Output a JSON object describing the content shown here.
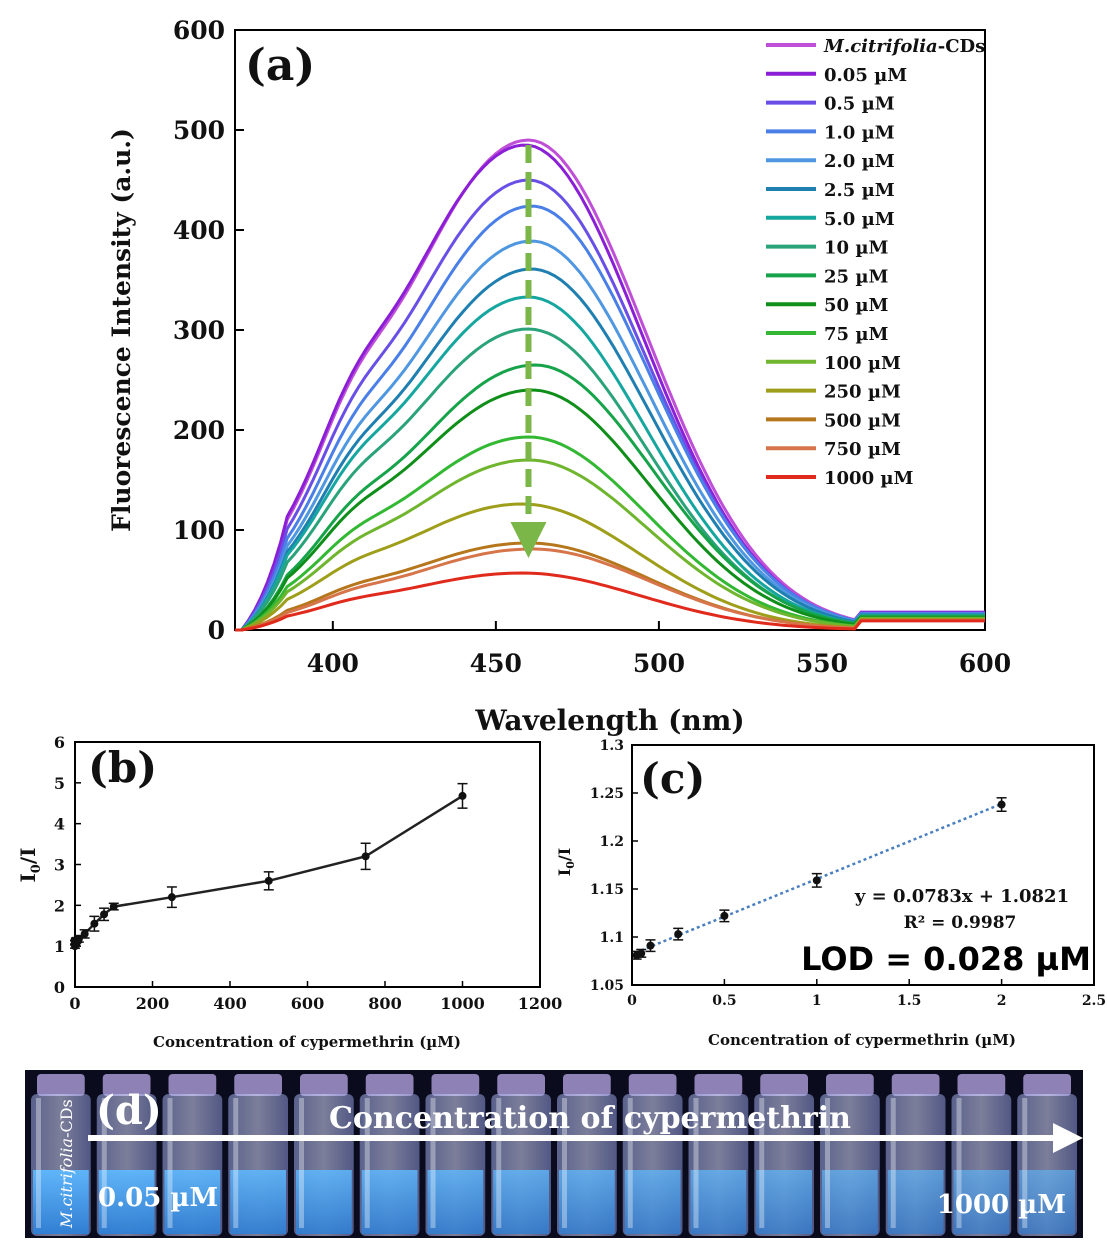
{
  "panels": {
    "a": "(a)",
    "b": "(b)",
    "c": "(c)",
    "d": "(d)"
  },
  "chart_data": [
    {
      "id": "a",
      "type": "line",
      "xlabel": "Wavelength (nm)",
      "ylabel": "Fluorescence Intensity (a.u.)",
      "xlim": [
        370,
        600
      ],
      "ylim": [
        0,
        600
      ],
      "xticks": [
        400,
        450,
        500,
        550,
        600
      ],
      "yticks": [
        0,
        100,
        200,
        300,
        400,
        500,
        600
      ],
      "legend_position": "top-right",
      "series": [
        {
          "name": "M.citrifolia-CDs",
          "name_italic": "M.citrifolia",
          "name_suffix": "-CDs",
          "color": "#c04fd8",
          "peak_x": 460,
          "peak_y": 490
        },
        {
          "name": "0.05 µM",
          "color": "#8b1fd6",
          "peak_x": 459,
          "peak_y": 485
        },
        {
          "name": "0.5 µM",
          "color": "#6a4fe6",
          "peak_x": 460,
          "peak_y": 450
        },
        {
          "name": "1.0 µM",
          "color": "#4a7fe8",
          "peak_x": 461,
          "peak_y": 424
        },
        {
          "name": "2.0 µM",
          "color": "#4f97e0",
          "peak_x": 461,
          "peak_y": 389
        },
        {
          "name": "2.5 µM",
          "color": "#1f7fb0",
          "peak_x": 461,
          "peak_y": 361
        },
        {
          "name": "5.0 µM",
          "color": "#16a6a0",
          "peak_x": 460,
          "peak_y": 333
        },
        {
          "name": "10 µM",
          "color": "#2aa37a",
          "peak_x": 460,
          "peak_y": 301
        },
        {
          "name": "25 µM",
          "color": "#17a34a",
          "peak_x": 462,
          "peak_y": 265
        },
        {
          "name": "50 µM",
          "color": "#0f8f1a",
          "peak_x": 461,
          "peak_y": 240
        },
        {
          "name": "75 µM",
          "color": "#33b833",
          "peak_x": 460,
          "peak_y": 193
        },
        {
          "name": "100 µM",
          "color": "#6fb52e",
          "peak_x": 460,
          "peak_y": 170
        },
        {
          "name": "250 µM",
          "color": "#9e9e1a",
          "peak_x": 458,
          "peak_y": 126
        },
        {
          "name": "500 µM",
          "color": "#b5761c",
          "peak_x": 460,
          "peak_y": 87
        },
        {
          "name": "750 µM",
          "color": "#d6744a",
          "peak_x": 461,
          "peak_y": 81
        },
        {
          "name": "1000 µM",
          "color": "#e02a1c",
          "peak_x": 458,
          "peak_y": 57
        }
      ],
      "arrow": {
        "x": 460,
        "y_from": 485,
        "y_to": 90,
        "color": "#7ab648"
      }
    },
    {
      "id": "b",
      "type": "line",
      "xlabel": "Concentration  of  cypermethrin  (µM)",
      "ylabel": "I0/I",
      "ylabel_main": "I",
      "ylabel_sub": "0",
      "ylabel_tail": "/I",
      "xlim": [
        0,
        1200
      ],
      "ylim": [
        0,
        6
      ],
      "xticks": [
        0,
        200,
        400,
        600,
        800,
        1000,
        1200
      ],
      "yticks": [
        0,
        1,
        2,
        3,
        4,
        5,
        6
      ],
      "x": [
        0,
        0.05,
        0.5,
        1,
        2,
        2.5,
        5,
        10,
        25,
        50,
        75,
        100,
        250,
        500,
        750,
        1000
      ],
      "y": [
        1.0,
        1.08,
        1.09,
        1.1,
        1.12,
        1.14,
        1.15,
        1.18,
        1.3,
        1.55,
        1.78,
        1.97,
        2.2,
        2.6,
        3.2,
        4.68
      ],
      "err": [
        0.05,
        0.05,
        0.05,
        0.05,
        0.05,
        0.06,
        0.06,
        0.08,
        0.1,
        0.18,
        0.15,
        0.08,
        0.25,
        0.22,
        0.32,
        0.3
      ]
    },
    {
      "id": "c",
      "type": "scatter",
      "xlabel": "Concentration  of  cypermethrin  (µM)",
      "ylabel": "I0/I",
      "ylabel_main": "I",
      "ylabel_sub": "0",
      "ylabel_tail": "/I",
      "xlim": [
        0,
        2.5
      ],
      "ylim": [
        1.05,
        1.3
      ],
      "xticks": [
        0,
        0.5,
        1,
        1.5,
        2,
        2.5
      ],
      "xtick_labels": [
        "0",
        "0.5",
        "1",
        "1.5",
        "2",
        "2.5"
      ],
      "yticks": [
        1.05,
        1.1,
        1.15,
        1.2,
        1.25,
        1.3
      ],
      "ytick_labels": [
        "1.05",
        "1.1",
        "1.15",
        "1.2",
        "1.25",
        "1.3"
      ],
      "x": [
        0.025,
        0.05,
        0.1,
        0.25,
        0.5,
        1.0,
        2.0
      ],
      "y": [
        1.081,
        1.083,
        1.091,
        1.103,
        1.122,
        1.159,
        1.238
      ],
      "err": [
        0.004,
        0.004,
        0.006,
        0.006,
        0.006,
        0.007,
        0.007
      ],
      "fit": {
        "slope": 0.0783,
        "intercept": 1.0821
      },
      "equation": "y = 0.0783x + 1.0821",
      "r2": "R² = 0.9987",
      "lod": "LOD = 0.028 µM"
    }
  ],
  "photo": {
    "vial_label": "M.citrifolia-CDs",
    "vial_label_italic": "M.citrifolia",
    "vial_label_suffix": "-CDs",
    "arrow_text": "Concentration of cypermethrin",
    "start_label": "0.05 µM",
    "end_label": "1000 µM",
    "vial_count": 16
  }
}
